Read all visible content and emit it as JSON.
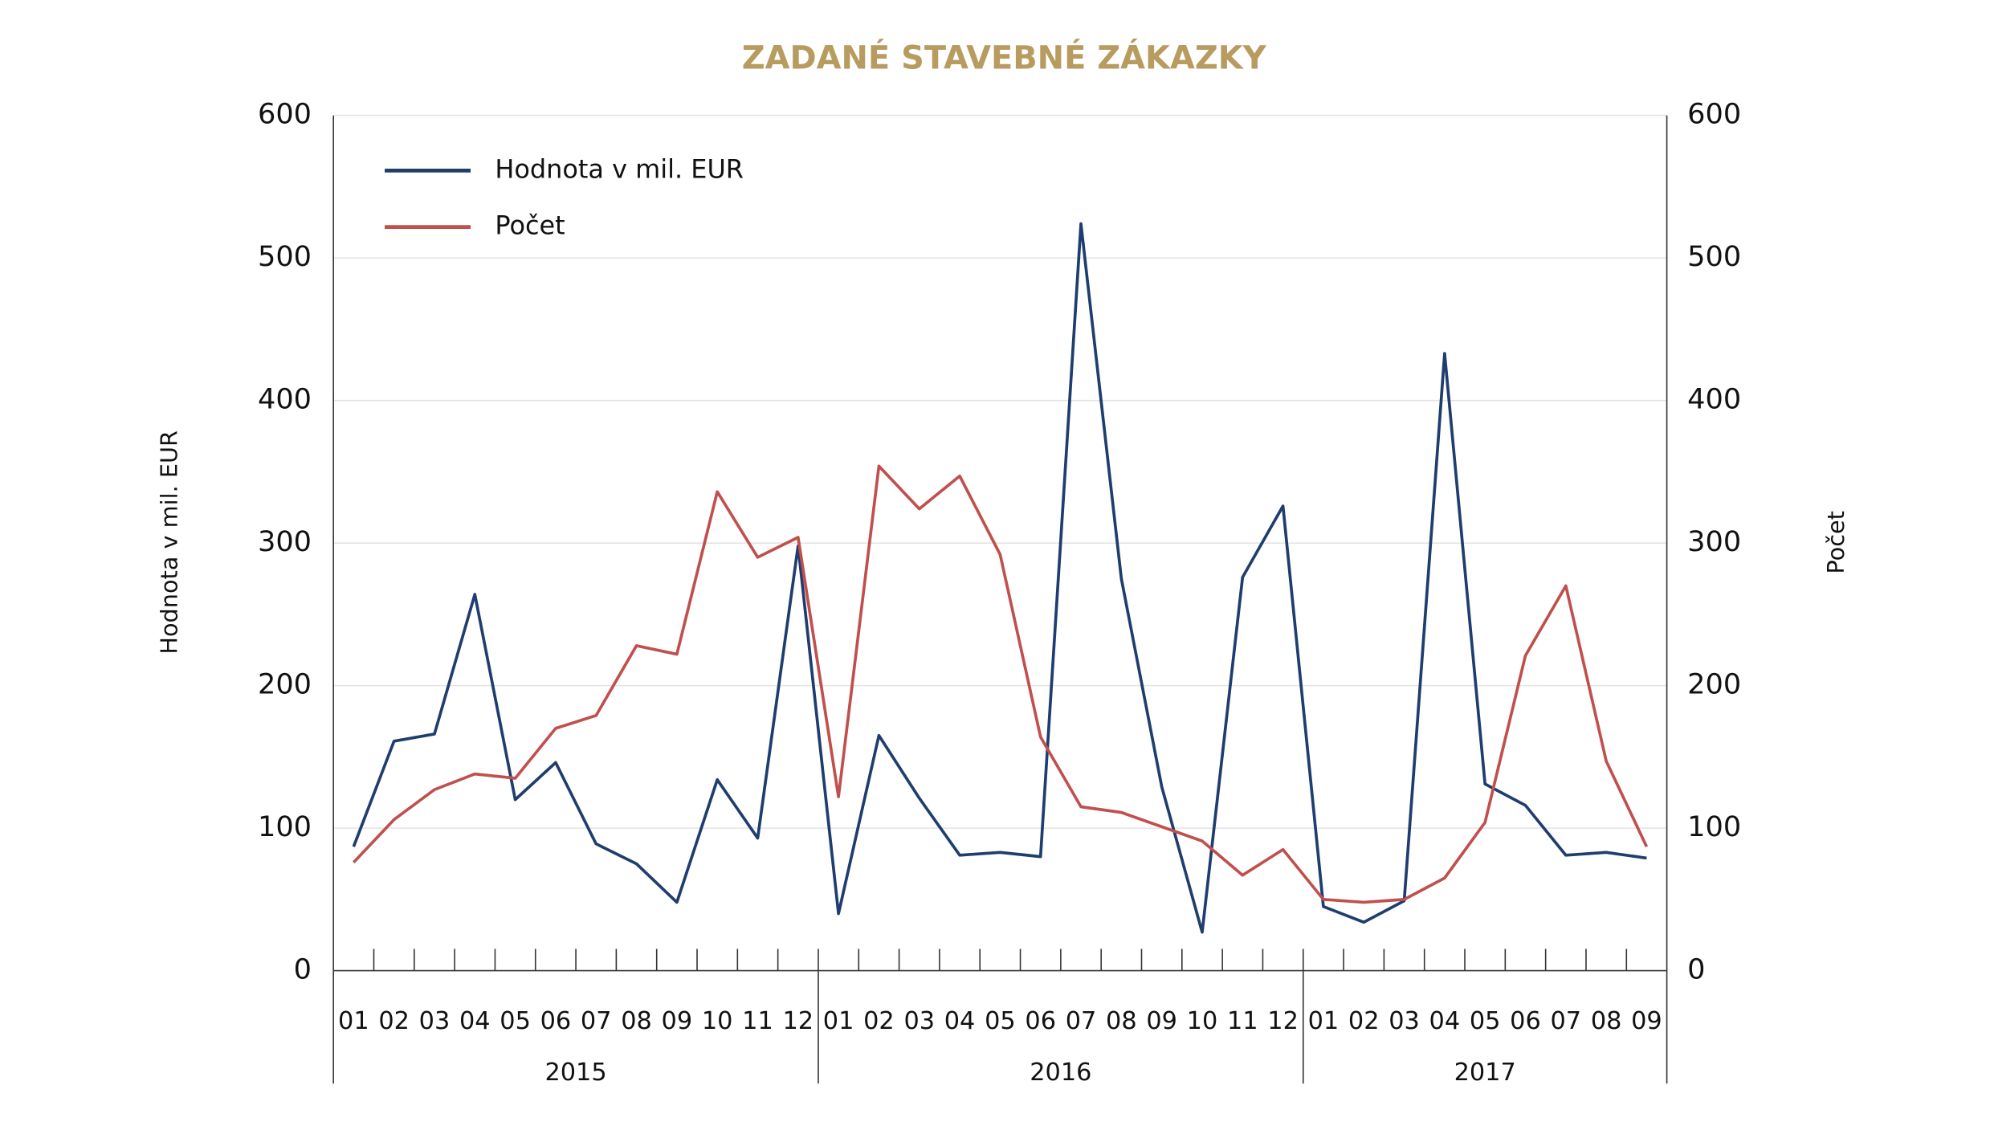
{
  "chart_data": {
    "type": "line",
    "title": "ZADANÉ STAVEBNÉ ZÁKAZKY",
    "y_label": "Hodnota v mil. EUR",
    "y2_label": "Počet",
    "groups": [
      {
        "label": "2015",
        "categories": [
          "01",
          "02",
          "03",
          "04",
          "05",
          "06",
          "07",
          "08",
          "09",
          "10",
          "11",
          "12"
        ]
      },
      {
        "label": "2016",
        "categories": [
          "01",
          "02",
          "03",
          "04",
          "05",
          "06",
          "07",
          "08",
          "09",
          "10",
          "11",
          "12"
        ]
      },
      {
        "label": "2017",
        "categories": [
          "01",
          "02",
          "03",
          "04",
          "05",
          "06",
          "07",
          "08",
          "09"
        ]
      }
    ],
    "series": [
      {
        "name": "Hodnota v mil. EUR",
        "color": "#1f3d6e",
        "axis": "y",
        "values": [
          87,
          161,
          166,
          264,
          120,
          146,
          89,
          75,
          48,
          134,
          93,
          298,
          40,
          165,
          121,
          81,
          83,
          80,
          524,
          275,
          129,
          27,
          276,
          326,
          45,
          34,
          49,
          433,
          131,
          116,
          81,
          83,
          79
        ]
      },
      {
        "name": "Počet",
        "color": "#c0504d",
        "axis": "y2",
        "values": [
          76,
          106,
          127,
          138,
          135,
          170,
          179,
          228,
          222,
          336,
          290,
          304,
          122,
          354,
          324,
          347,
          292,
          164,
          115,
          111,
          101,
          91,
          67,
          85,
          50,
          48,
          50,
          65,
          104,
          221,
          270,
          147,
          87
        ]
      }
    ],
    "ylim": [
      0,
      600
    ],
    "yticks": [
      0,
      100,
      200,
      300,
      400,
      500,
      600
    ],
    "y2lim": [
      0,
      600
    ],
    "y2ticks": [
      0,
      100,
      200,
      300,
      400,
      500,
      600
    ],
    "grid": true,
    "legend": "upper left"
  }
}
